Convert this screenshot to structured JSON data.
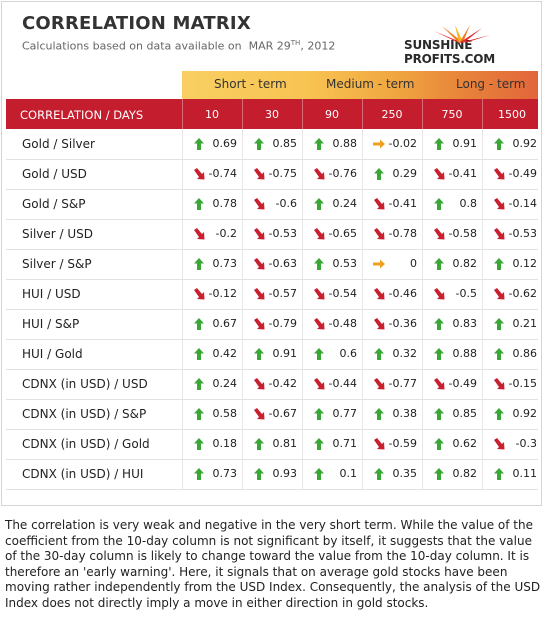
{
  "header": {
    "title": "CORRELATION MATRIX",
    "subtitle_prefix": "Calculations based on data available on",
    "date_month": "MAR 29",
    "date_suffix": "TH",
    "date_year": ", 2012",
    "logo_text": "SUNSHINE PROFITS.COM"
  },
  "bands": [
    {
      "label": "Short - term"
    },
    {
      "label": "Medium - term"
    },
    {
      "label": "Long - term"
    }
  ],
  "table": {
    "corner_label": "CORRELATION / DAYS",
    "columns": [
      "10",
      "30",
      "90",
      "250",
      "750",
      "1500"
    ],
    "rows": [
      {
        "label": "Gold / Silver",
        "values": [
          "0.69",
          "0.85",
          "0.88",
          "-0.02",
          "0.91",
          "0.92"
        ]
      },
      {
        "label": "Gold / USD",
        "values": [
          "-0.74",
          "-0.75",
          "-0.76",
          "0.29",
          "-0.41",
          "-0.49"
        ]
      },
      {
        "label": "Gold / S&P",
        "values": [
          "0.78",
          "-0.6",
          "0.24",
          "-0.41",
          "0.8",
          "-0.14"
        ]
      },
      {
        "label": "Silver / USD",
        "values": [
          "-0.2",
          "-0.53",
          "-0.65",
          "-0.78",
          "-0.58",
          "-0.53"
        ]
      },
      {
        "label": "Silver / S&P",
        "values": [
          "0.73",
          "-0.63",
          "0.53",
          "0",
          "0.82",
          "0.12"
        ]
      },
      {
        "label": "HUI / USD",
        "values": [
          "-0.12",
          "-0.57",
          "-0.54",
          "-0.46",
          "-0.5",
          "-0.62"
        ]
      },
      {
        "label": "HUI / S&P",
        "values": [
          "0.67",
          "-0.79",
          "-0.48",
          "-0.36",
          "0.83",
          "0.21"
        ]
      },
      {
        "label": "HUI / Gold",
        "values": [
          "0.42",
          "0.91",
          "0.6",
          "0.32",
          "0.88",
          "0.86"
        ]
      },
      {
        "label": "CDNX (in USD) / USD",
        "values": [
          "0.24",
          "-0.42",
          "-0.44",
          "-0.77",
          "-0.49",
          "-0.15"
        ]
      },
      {
        "label": "CDNX (in USD) / S&P",
        "values": [
          "0.58",
          "-0.67",
          "0.77",
          "0.38",
          "0.85",
          "0.92"
        ]
      },
      {
        "label": "CDNX (in USD) / Gold",
        "values": [
          "0.18",
          "0.81",
          "0.71",
          "-0.59",
          "0.62",
          "-0.3"
        ]
      },
      {
        "label": "CDNX (in USD) / HUI",
        "values": [
          "0.73",
          "0.93",
          "0.1",
          "0.35",
          "0.82",
          "0.11"
        ]
      }
    ]
  },
  "colors": {
    "header_red": "#c41d2e",
    "arrow_green": "#3aa635",
    "arrow_red": "#c8202e",
    "arrow_orange": "#f0a020"
  },
  "note": "The correlation is very weak and negative in the very short term. While the value of the coefficient from the 10-day column is not significant by itself, it suggests that the value of the 30-day column is likely to change toward the value from the 10-day column. It is therefore an 'early warning'. Here, it signals that on average gold stocks have been moving rather independently from the USD Index. Consequently, the analysis of the USD Index does not directly imply a move in either direction in gold stocks."
}
